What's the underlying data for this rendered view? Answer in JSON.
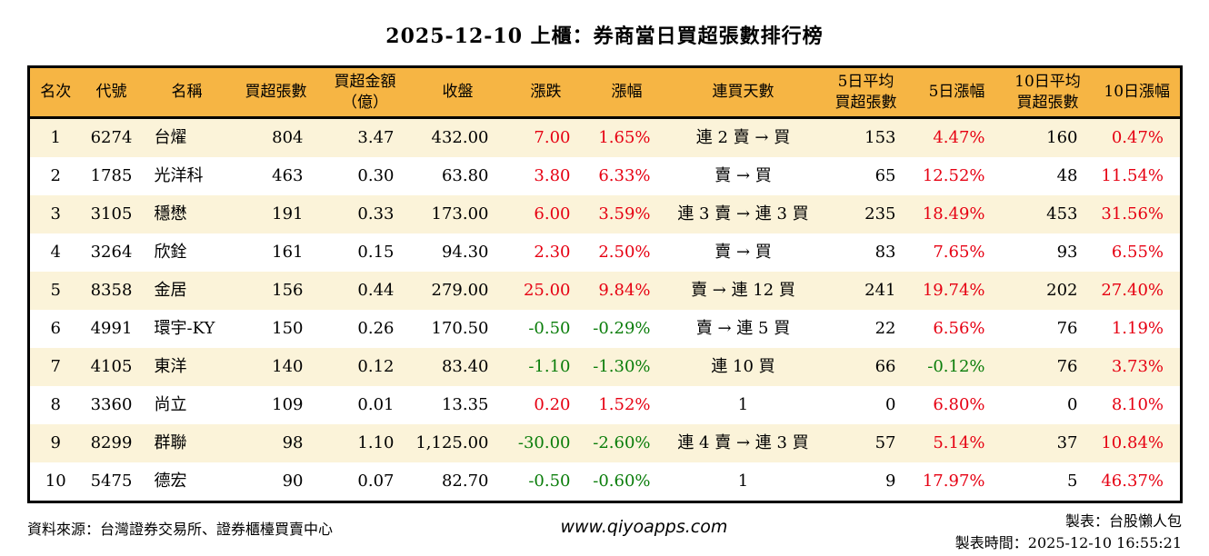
{
  "colors": {
    "header_bg": "#F6B544",
    "stripe_bg": "#FBF3D9",
    "up_red": "#E60012",
    "down_green": "#0A7D0A",
    "border": "#000000"
  },
  "chart_data": {
    "type": "table",
    "title": "2025-12-10 上櫃：券商當日買超張數排行榜",
    "columns": [
      "名次",
      "代號",
      "名稱",
      "買超張數",
      "買超金額\n（億）",
      "收盤",
      "漲跌",
      "漲幅",
      "連買天數",
      "5日平均\n買超張數",
      "5日漲幅",
      "10日平均\n買超張數",
      "10日漲幅"
    ],
    "rows": [
      [
        "1",
        "6274",
        "台燿",
        "804",
        "3.47",
        "432.00",
        "7.00",
        "1.65%",
        "連 2 賣 → 買",
        "153",
        "4.47%",
        "160",
        "0.47%"
      ],
      [
        "2",
        "1785",
        "光洋科",
        "463",
        "0.30",
        "63.80",
        "3.80",
        "6.33%",
        "賣 → 買",
        "65",
        "12.52%",
        "48",
        "11.54%"
      ],
      [
        "3",
        "3105",
        "穩懋",
        "191",
        "0.33",
        "173.00",
        "6.00",
        "3.59%",
        "連 3 賣 → 連 3 買",
        "235",
        "18.49%",
        "453",
        "31.56%"
      ],
      [
        "4",
        "3264",
        "欣銓",
        "161",
        "0.15",
        "94.30",
        "2.30",
        "2.50%",
        "賣 → 買",
        "83",
        "7.65%",
        "93",
        "6.55%"
      ],
      [
        "5",
        "8358",
        "金居",
        "156",
        "0.44",
        "279.00",
        "25.00",
        "9.84%",
        "賣 → 連 12 買",
        "241",
        "19.74%",
        "202",
        "27.40%"
      ],
      [
        "6",
        "4991",
        "環宇-KY",
        "150",
        "0.26",
        "170.50",
        "-0.50",
        "-0.29%",
        "賣 → 連 5 買",
        "22",
        "6.56%",
        "76",
        "1.19%"
      ],
      [
        "7",
        "4105",
        "東洋",
        "140",
        "0.12",
        "83.40",
        "-1.10",
        "-1.30%",
        "連 10 買",
        "66",
        "-0.12%",
        "76",
        "3.73%"
      ],
      [
        "8",
        "3360",
        "尚立",
        "109",
        "0.01",
        "13.35",
        "0.20",
        "1.52%",
        "1",
        "0",
        "6.80%",
        "0",
        "8.10%"
      ],
      [
        "9",
        "8299",
        "群聯",
        "98",
        "1.10",
        "1,125.00",
        "-30.00",
        "-2.60%",
        "連 4 賣 → 連 3 買",
        "57",
        "5.14%",
        "37",
        "10.84%"
      ],
      [
        "10",
        "5475",
        "德宏",
        "90",
        "0.07",
        "82.70",
        "-0.50",
        "-0.60%",
        "1",
        "9",
        "17.97%",
        "5",
        "46.37%"
      ]
    ]
  },
  "footer": {
    "source": "資料來源：台灣證券交易所、證券櫃檯買賣中心",
    "website": "www.qiyoapps.com",
    "maker": "製表：台股懶人包",
    "timestamp": "製表時間：2025-12-10 16:55:21"
  }
}
